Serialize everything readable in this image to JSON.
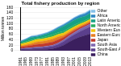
{
  "chart_data": {
    "type": "area",
    "title": "Total fishery production by region",
    "y_label": "Million tonnes",
    "categories": [
      "1961",
      "1965",
      "1969",
      "1973",
      "1977",
      "1981",
      "1985",
      "1989",
      "1993",
      "1997",
      "2001",
      "2005",
      "2009",
      "2013"
    ],
    "series": [
      {
        "name": "China",
        "color": "#3b1f5e",
        "values": [
          2,
          3,
          3,
          4,
          4,
          5,
          7,
          12,
          20,
          32,
          42,
          50,
          56,
          62
        ]
      },
      {
        "name": "South-East Asia",
        "color": "#5b3f8c",
        "values": [
          3,
          4,
          5,
          6,
          7,
          8,
          9,
          11,
          13,
          15,
          17,
          20,
          23,
          26
        ]
      },
      {
        "name": "South Asia",
        "color": "#7e67b0",
        "values": [
          2,
          2,
          3,
          3,
          3,
          4,
          4,
          5,
          6,
          7,
          8,
          9,
          10,
          11
        ]
      },
      {
        "name": "Japan",
        "color": "#c0392b",
        "values": [
          6,
          7,
          8,
          10,
          10,
          11,
          12,
          12,
          10,
          8,
          7,
          6,
          5,
          5
        ]
      },
      {
        "name": "Eastern Europe",
        "color": "#e67e22",
        "values": [
          4,
          5,
          7,
          9,
          10,
          10,
          11,
          11,
          7,
          6,
          6,
          5,
          5,
          5
        ]
      },
      {
        "name": "Western Europe",
        "color": "#f1c40f",
        "values": [
          7,
          8,
          9,
          9,
          9,
          9,
          9,
          9,
          9,
          9,
          8,
          8,
          7,
          7
        ]
      },
      {
        "name": "North America",
        "color": "#27ae60",
        "values": [
          4,
          4,
          4,
          4,
          5,
          6,
          7,
          7,
          7,
          7,
          7,
          6,
          6,
          6
        ]
      },
      {
        "name": "Latin America",
        "color": "#16a085",
        "values": [
          4,
          7,
          10,
          6,
          8,
          9,
          11,
          14,
          18,
          17,
          18,
          18,
          15,
          16
        ]
      },
      {
        "name": "Africa",
        "color": "#2e86c1",
        "values": [
          2,
          2,
          3,
          3,
          3,
          3,
          4,
          4,
          5,
          6,
          7,
          8,
          9,
          10
        ]
      },
      {
        "name": "Other",
        "color": "#85c1e9",
        "values": [
          2,
          2,
          2,
          3,
          3,
          3,
          3,
          3,
          3,
          3,
          3,
          3,
          4,
          4
        ]
      }
    ],
    "ylim": [
      0,
      160
    ],
    "yticks": [
      0,
      20,
      40,
      60,
      80,
      100,
      120,
      140,
      160
    ],
    "stacked": true,
    "legend": "right",
    "grid": true
  }
}
